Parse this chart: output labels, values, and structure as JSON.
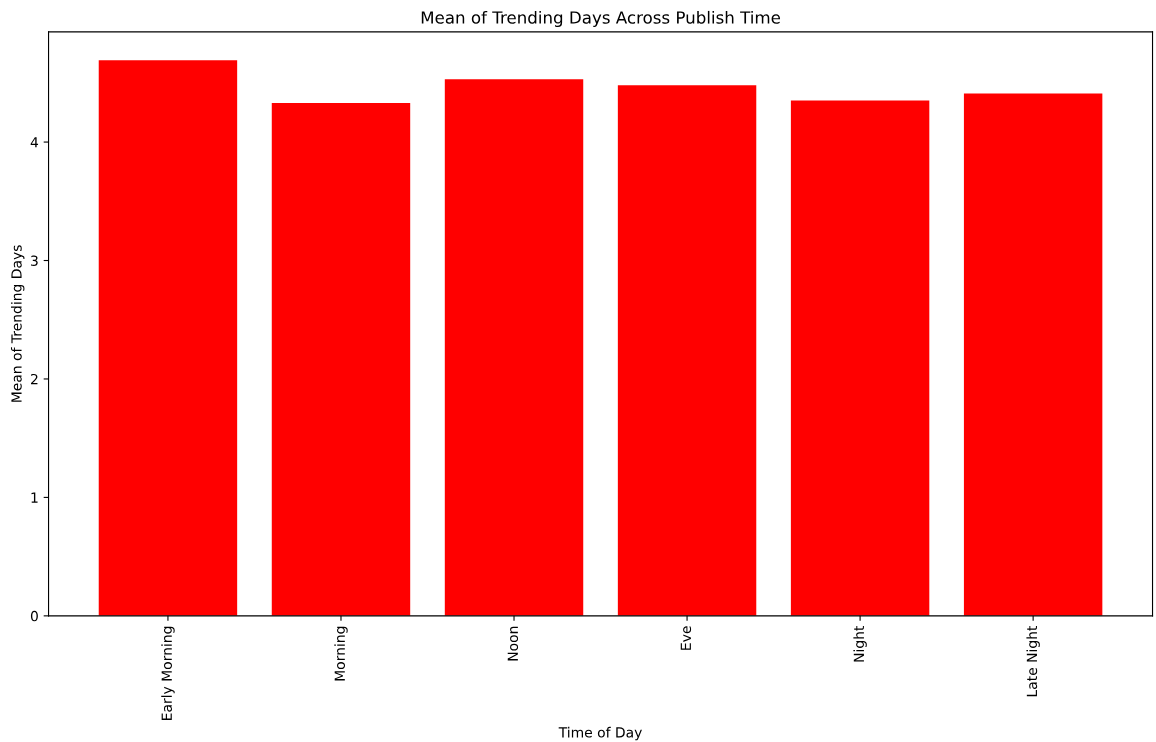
{
  "chart_data": {
    "type": "bar",
    "title": "Mean of Trending Days Across Publish Time",
    "xlabel": "Time of Day",
    "ylabel": "Mean of Trending Days",
    "categories": [
      "Early Morning",
      "Morning",
      "Noon",
      "Eve",
      "Night",
      "Late Night"
    ],
    "values": [
      4.69,
      4.33,
      4.53,
      4.48,
      4.35,
      4.41
    ],
    "color": "#ff0000",
    "ylim": [
      0,
      4.93
    ],
    "yticks": [
      0,
      1,
      2,
      3,
      4
    ],
    "grid": false
  }
}
